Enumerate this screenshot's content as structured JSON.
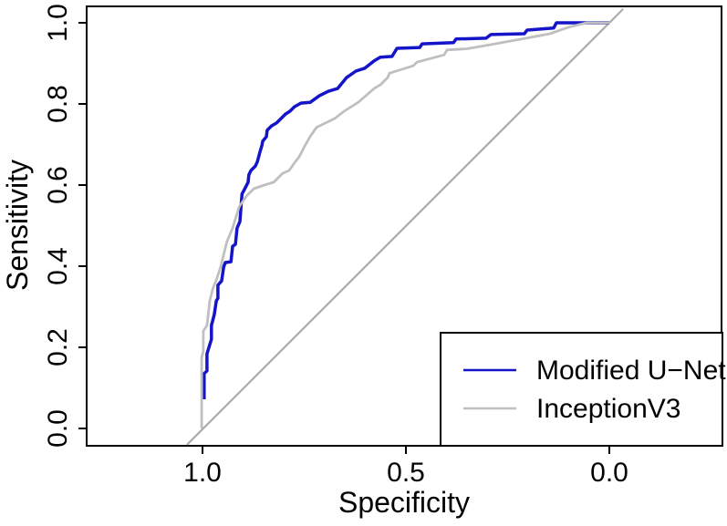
{
  "chart_data": {
    "type": "line",
    "subtype": "roc-curve",
    "title": "",
    "xlabel": "Specificity",
    "ylabel": "Sensitivity",
    "x_axis": {
      "label": "Specificity",
      "reversed": true,
      "range": [
        1.0,
        0.0
      ],
      "ticks": [
        {
          "value": 1.0,
          "label": "1.0"
        },
        {
          "value": 0.5,
          "label": "0.5"
        },
        {
          "value": 0.0,
          "label": "0.0"
        }
      ]
    },
    "y_axis": {
      "label": "Sensitivity",
      "range": [
        0.0,
        1.0
      ],
      "ticks": [
        {
          "value": 0.0,
          "label": "0.0"
        },
        {
          "value": 0.2,
          "label": "0.2"
        },
        {
          "value": 0.4,
          "label": "0.4"
        },
        {
          "value": 0.6,
          "label": "0.6"
        },
        {
          "value": 0.8,
          "label": "0.8"
        },
        {
          "value": 1.0,
          "label": "1.0"
        }
      ]
    },
    "grid": false,
    "reference_line": {
      "description": "chance diagonal, sensitivity = 1 - specificity",
      "color": "#ababab",
      "width": 2.2,
      "x1": 1.038,
      "y1": -0.04,
      "x2": -0.034,
      "y2": 1.034
    },
    "legend_position": "bottom-right",
    "series": [
      {
        "name": "Modified U−Net",
        "color": "#1414c8",
        "line_width": 3.5,
        "points": [
          [
            0.996,
            0.072
          ],
          [
            0.996,
            0.135
          ],
          [
            0.989,
            0.142
          ],
          [
            0.989,
            0.184
          ],
          [
            0.978,
            0.22
          ],
          [
            0.978,
            0.254
          ],
          [
            0.971,
            0.281
          ],
          [
            0.966,
            0.315
          ],
          [
            0.962,
            0.321
          ],
          [
            0.962,
            0.353
          ],
          [
            0.953,
            0.364
          ],
          [
            0.948,
            0.398
          ],
          [
            0.944,
            0.409
          ],
          [
            0.93,
            0.411
          ],
          [
            0.926,
            0.449
          ],
          [
            0.919,
            0.454
          ],
          [
            0.915,
            0.494
          ],
          [
            0.908,
            0.51
          ],
          [
            0.903,
            0.578
          ],
          [
            0.897,
            0.589
          ],
          [
            0.888,
            0.607
          ],
          [
            0.886,
            0.625
          ],
          [
            0.881,
            0.636
          ],
          [
            0.87,
            0.647
          ],
          [
            0.865,
            0.658
          ],
          [
            0.859,
            0.681
          ],
          [
            0.854,
            0.697
          ],
          [
            0.852,
            0.708
          ],
          [
            0.843,
            0.719
          ],
          [
            0.841,
            0.735
          ],
          [
            0.83,
            0.746
          ],
          [
            0.818,
            0.753
          ],
          [
            0.807,
            0.764
          ],
          [
            0.796,
            0.775
          ],
          [
            0.785,
            0.782
          ],
          [
            0.774,
            0.793
          ],
          [
            0.758,
            0.802
          ],
          [
            0.735,
            0.804
          ],
          [
            0.713,
            0.82
          ],
          [
            0.691,
            0.831
          ],
          [
            0.668,
            0.838
          ],
          [
            0.646,
            0.865
          ],
          [
            0.623,
            0.881
          ],
          [
            0.601,
            0.888
          ],
          [
            0.578,
            0.906
          ],
          [
            0.563,
            0.915
          ],
          [
            0.534,
            0.917
          ],
          [
            0.522,
            0.937
          ],
          [
            0.466,
            0.939
          ],
          [
            0.46,
            0.948
          ],
          [
            0.383,
            0.951
          ],
          [
            0.377,
            0.96
          ],
          [
            0.303,
            0.962
          ],
          [
            0.291,
            0.971
          ],
          [
            0.209,
            0.973
          ],
          [
            0.202,
            0.982
          ],
          [
            0.137,
            0.987
          ],
          [
            0.13,
            1.0
          ],
          [
            0.0,
            1.0
          ]
        ]
      },
      {
        "name": "InceptionV3",
        "color": "#bfbfbf",
        "line_width": 2.8,
        "points": [
          [
            1.002,
            0.0
          ],
          [
            1.002,
            0.175
          ],
          [
            0.998,
            0.191
          ],
          [
            0.998,
            0.24
          ],
          [
            0.989,
            0.254
          ],
          [
            0.982,
            0.315
          ],
          [
            0.975,
            0.344
          ],
          [
            0.966,
            0.366
          ],
          [
            0.955,
            0.4
          ],
          [
            0.94,
            0.461
          ],
          [
            0.926,
            0.494
          ],
          [
            0.91,
            0.546
          ],
          [
            0.892,
            0.573
          ],
          [
            0.874,
            0.591
          ],
          [
            0.848,
            0.6
          ],
          [
            0.825,
            0.607
          ],
          [
            0.803,
            0.629
          ],
          [
            0.787,
            0.636
          ],
          [
            0.776,
            0.652
          ],
          [
            0.762,
            0.67
          ],
          [
            0.747,
            0.699
          ],
          [
            0.735,
            0.72
          ],
          [
            0.72,
            0.742
          ],
          [
            0.675,
            0.764
          ],
          [
            0.652,
            0.782
          ],
          [
            0.617,
            0.804
          ],
          [
            0.578,
            0.838
          ],
          [
            0.563,
            0.847
          ],
          [
            0.545,
            0.865
          ],
          [
            0.54,
            0.876
          ],
          [
            0.482,
            0.894
          ],
          [
            0.473,
            0.903
          ],
          [
            0.406,
            0.921
          ],
          [
            0.399,
            0.933
          ],
          [
            0.35,
            0.936
          ],
          [
            0.303,
            0.944
          ],
          [
            0.204,
            0.962
          ],
          [
            0.146,
            0.973
          ],
          [
            0.101,
            0.989
          ],
          [
            0.056,
            1.0
          ],
          [
            0.0,
            1.0
          ]
        ]
      }
    ]
  },
  "legend": {
    "items": [
      {
        "label": "Modified U−Net",
        "color": "#1414c8"
      },
      {
        "label": "InceptionV3",
        "color": "#bfbfbf"
      }
    ]
  },
  "colors": {
    "axis": "#000000",
    "background": "#ffffff"
  }
}
